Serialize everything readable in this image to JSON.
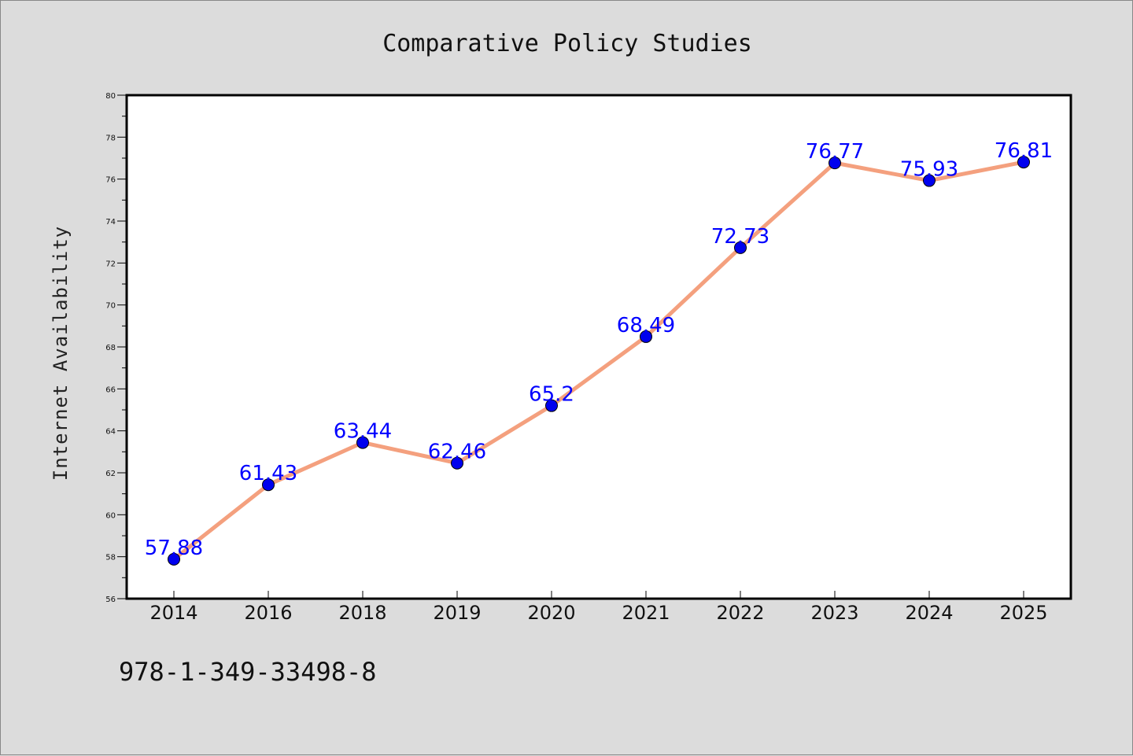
{
  "chart_data": {
    "type": "line",
    "title": "Comparative Policy Studies",
    "xlabel": "",
    "ylabel": "Internet Availability",
    "categories": [
      "2014",
      "2016",
      "2018",
      "2019",
      "2020",
      "2021",
      "2022",
      "2023",
      "2024",
      "2025"
    ],
    "series": [
      {
        "values": [
          57.88,
          61.43,
          63.44,
          62.46,
          65.2,
          68.49,
          72.73,
          76.77,
          75.93,
          76.81
        ],
        "labels": [
          "57.88",
          "61.43",
          "63.44",
          "62.46",
          "65.2",
          "68.49",
          "72.73",
          "76.77",
          "75.93",
          "76.81"
        ],
        "line_color": "#f4a07e",
        "marker_color": "#0000ee"
      }
    ],
    "ylim": [
      56,
      80
    ],
    "yticks": [
      "56",
      "58",
      "60",
      "62",
      "64",
      "66",
      "68",
      "70",
      "72",
      "74",
      "76",
      "78",
      "80"
    ],
    "grid": false,
    "legend": "none",
    "label_color": "#0000ff",
    "annotation": "978-1-349-33498-8"
  }
}
